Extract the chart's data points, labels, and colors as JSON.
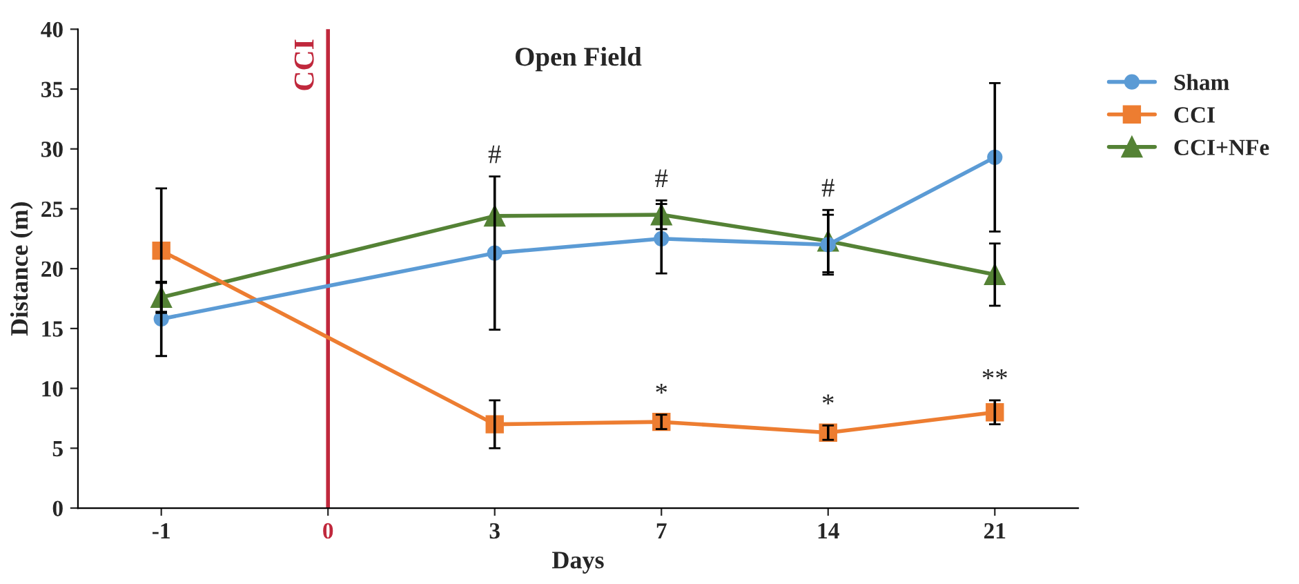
{
  "chart_data": {
    "type": "line",
    "title": "Open Field",
    "xlabel": "Days",
    "ylabel": "Distance (m)",
    "categories": [
      "-1",
      "0",
      "3",
      "7",
      "14",
      "21"
    ],
    "series": [
      {
        "name": "Sham",
        "color": "#5b9bd5",
        "marker": "circle",
        "values": [
          15.8,
          null,
          21.3,
          22.5,
          22.0,
          29.3
        ],
        "errors": [
          3.1,
          null,
          6.4,
          2.9,
          2.5,
          6.2
        ]
      },
      {
        "name": "CCI",
        "color": "#ed7d31",
        "marker": "square",
        "values": [
          21.5,
          null,
          7.0,
          7.2,
          6.3,
          8.0
        ],
        "errors": [
          5.2,
          null,
          2.0,
          0.6,
          0.6,
          1.0
        ]
      },
      {
        "name": "CCI+NFe",
        "color": "#548235",
        "marker": "triangle",
        "values": [
          17.6,
          null,
          24.4,
          24.5,
          22.3,
          19.5
        ],
        "errors": [
          1.2,
          null,
          null,
          1.2,
          2.6,
          2.6
        ]
      }
    ],
    "ylim": [
      0,
      40
    ],
    "yticks": [
      0,
      5,
      10,
      15,
      20,
      25,
      30,
      35,
      40
    ],
    "ref_lines": [
      {
        "axis": "x",
        "value": "0",
        "label": "CCI",
        "color": "#c0283c"
      }
    ],
    "annotations": [
      {
        "text": "#",
        "x": "3",
        "y": 24.4
      },
      {
        "text": "#",
        "x": "7",
        "y": 24.5
      },
      {
        "text": "#",
        "x": "14",
        "y": 22.3
      },
      {
        "text": "*",
        "x": "7",
        "y": 7.2
      },
      {
        "text": "*",
        "x": "14",
        "y": 6.3
      },
      {
        "text": "**",
        "x": "21",
        "y": 8.0
      }
    ],
    "legend": "right",
    "grid": false
  }
}
